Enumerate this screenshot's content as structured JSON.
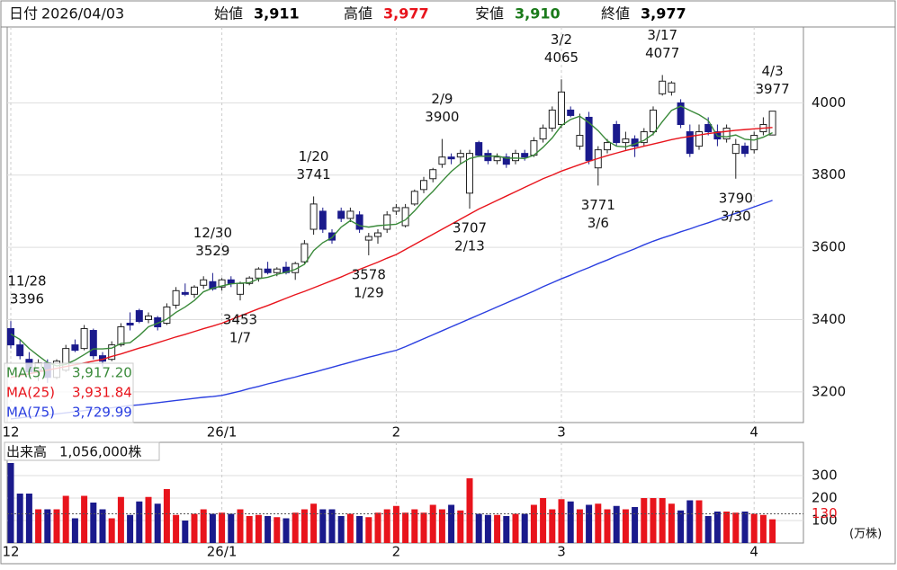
{
  "header": {
    "date_label": "日付",
    "date": "2026/04/03",
    "fields": [
      {
        "label": "始値",
        "value": "3,911",
        "color": "#000000"
      },
      {
        "label": "高値",
        "value": "3,977",
        "color": "#e8141c"
      },
      {
        "label": "安値",
        "value": "3,910",
        "color": "#1a7a1a"
      },
      {
        "label": "終値",
        "value": "3,977",
        "color": "#000000"
      }
    ]
  },
  "chart_data": [
    {
      "type": "candlestick",
      "categories": [
        "12",
        null,
        null,
        null,
        null,
        null,
        null,
        null,
        null,
        null,
        null,
        null,
        null,
        null,
        null,
        null,
        null,
        null,
        null,
        null,
        null,
        null,
        null,
        "26/1",
        null,
        null,
        null,
        null,
        null,
        null,
        null,
        null,
        null,
        null,
        null,
        null,
        null,
        null,
        null,
        null,
        null,
        null,
        "2",
        null,
        null,
        null,
        null,
        null,
        null,
        null,
        null,
        null,
        null,
        null,
        null,
        null,
        null,
        null,
        null,
        null,
        "3",
        null,
        null,
        null,
        null,
        null,
        null,
        null,
        null,
        null,
        null,
        null,
        null,
        null,
        null,
        null,
        null,
        null,
        null,
        null,
        null,
        "4",
        null,
        null
      ],
      "open": [
        3375,
        3330,
        3290,
        3260,
        3280,
        3240,
        3260,
        3330,
        3320,
        3370,
        3300,
        3290,
        3330,
        3390,
        3425,
        3400,
        3405,
        3390,
        3440,
        3475,
        3470,
        3495,
        3505,
        3490,
        3510,
        3470,
        3500,
        3515,
        3540,
        3530,
        3545,
        3530,
        3560,
        3650,
        3700,
        3640,
        3700,
        3680,
        3690,
        3620,
        3630,
        3650,
        3700,
        3660,
        3720,
        3760,
        3790,
        3830,
        3850,
        3850,
        3750,
        3890,
        3860,
        3840,
        3850,
        3840,
        3860,
        3855,
        3900,
        3930,
        3940,
        3980,
        3880,
        3960,
        3820,
        3870,
        3940,
        3890,
        3900,
        3890,
        3920,
        4025,
        4030,
        4000,
        3920,
        3880,
        3940,
        3920,
        3900,
        3860,
        3880,
        3870,
        3920,
        3911
      ],
      "high": [
        3396,
        3345,
        3310,
        3290,
        3290,
        3290,
        3330,
        3345,
        3385,
        3375,
        3310,
        3340,
        3390,
        3420,
        3430,
        3420,
        3410,
        3445,
        3490,
        3500,
        3495,
        3520,
        3529,
        3515,
        3520,
        3505,
        3520,
        3545,
        3560,
        3545,
        3560,
        3560,
        3620,
        3741,
        3710,
        3650,
        3710,
        3710,
        3700,
        3640,
        3650,
        3700,
        3720,
        3720,
        3760,
        3795,
        3820,
        3900,
        3860,
        3870,
        3870,
        3895,
        3870,
        3860,
        3860,
        3870,
        3870,
        3905,
        3940,
        3990,
        4065,
        3990,
        3970,
        3975,
        3880,
        3900,
        3950,
        3920,
        3910,
        3930,
        3990,
        4077,
        4060,
        4010,
        3940,
        3940,
        3960,
        3940,
        3940,
        3900,
        3890,
        3920,
        3960,
        3977
      ],
      "low": [
        3320,
        3290,
        3240,
        3230,
        3225,
        3235,
        3255,
        3310,
        3315,
        3290,
        3270,
        3285,
        3325,
        3370,
        3390,
        3390,
        3370,
        3385,
        3430,
        3465,
        3460,
        3485,
        3480,
        3480,
        3490,
        3453,
        3495,
        3505,
        3525,
        3520,
        3525,
        3510,
        3555,
        3635,
        3640,
        3610,
        3670,
        3670,
        3640,
        3578,
        3610,
        3640,
        3690,
        3655,
        3715,
        3750,
        3780,
        3820,
        3830,
        3830,
        3707,
        3850,
        3830,
        3830,
        3820,
        3830,
        3840,
        3850,
        3890,
        3920,
        3930,
        3960,
        3870,
        3830,
        3771,
        3860,
        3880,
        3870,
        3850,
        3880,
        3910,
        4020,
        4020,
        3930,
        3850,
        3870,
        3910,
        3880,
        3890,
        3790,
        3850,
        3860,
        3910,
        3910
      ],
      "close": [
        3330,
        3300,
        3255,
        3280,
        3240,
        3285,
        3320,
        3315,
        3375,
        3300,
        3285,
        3330,
        3380,
        3385,
        3395,
        3410,
        3380,
        3435,
        3480,
        3470,
        3490,
        3510,
        3485,
        3510,
        3500,
        3500,
        3515,
        3540,
        3530,
        3540,
        3530,
        3555,
        3610,
        3720,
        3650,
        3620,
        3680,
        3700,
        3650,
        3630,
        3640,
        3690,
        3710,
        3710,
        3755,
        3785,
        3815,
        3850,
        3845,
        3860,
        3860,
        3855,
        3840,
        3850,
        3830,
        3860,
        3850,
        3895,
        3930,
        3980,
        4030,
        3965,
        3910,
        3840,
        3870,
        3890,
        3890,
        3900,
        3880,
        3920,
        3980,
        4060,
        4055,
        3940,
        3860,
        3920,
        3920,
        3900,
        3930,
        3885,
        3860,
        3910,
        3940,
        3977
      ],
      "up_color": "#ffffff",
      "down_color": "#1a1a8c",
      "series": [
        {
          "name": "MA(5)",
          "color": "#3a8a3a",
          "legend_value": {
            "value": 3917.2,
            "label": "3,917.20"
          },
          "values": [
            3360,
            3345,
            3320,
            3300,
            3281,
            3272,
            3276,
            3288,
            3303,
            3319,
            3319,
            3321,
            3334,
            3336,
            3356,
            3380,
            3390,
            3401,
            3420,
            3435,
            3453,
            3477,
            3487,
            3493,
            3499,
            3501,
            3502,
            3513,
            3517,
            3525,
            3531,
            3539,
            3553,
            3591,
            3613,
            3627,
            3656,
            3674,
            3660,
            3656,
            3660,
            3662,
            3664,
            3676,
            3701,
            3730,
            3755,
            3783,
            3810,
            3831,
            3846,
            3852,
            3852,
            3853,
            3847,
            3847,
            3846,
            3855,
            3877,
            3903,
            3937,
            3954,
            3963,
            3945,
            3923,
            3895,
            3880,
            3878,
            3886,
            3896,
            3914,
            3948,
            3979,
            3991,
            3979,
            3967,
            3951,
            3908,
            3906,
            3911,
            3899,
            3897,
            3905,
            3917.2
          ]
        },
        {
          "name": "MA(25)",
          "color": "#e8141c",
          "legend_value": {
            "value": 3931.84,
            "label": "3,931.84"
          },
          "values": [
            3240,
            3245,
            3250,
            3255,
            3260,
            3265,
            3270,
            3275,
            3280,
            3285,
            3290,
            3298,
            3305,
            3313,
            3321,
            3328,
            3336,
            3344,
            3352,
            3359,
            3367,
            3375,
            3382,
            3390,
            3400,
            3410,
            3420,
            3430,
            3439,
            3449,
            3459,
            3469,
            3478,
            3488,
            3498,
            3508,
            3518,
            3529,
            3539,
            3549,
            3559,
            3570,
            3580,
            3594,
            3608,
            3622,
            3636,
            3650,
            3664,
            3678,
            3692,
            3706,
            3718,
            3730,
            3742,
            3754,
            3766,
            3778,
            3790,
            3800,
            3811,
            3820,
            3829,
            3838,
            3846,
            3854,
            3861,
            3868,
            3874,
            3880,
            3886,
            3892,
            3898,
            3903,
            3907,
            3911,
            3915,
            3918,
            3921,
            3924,
            3926,
            3928,
            3930,
            3931.84
          ]
        },
        {
          "name": "MA(75)",
          "color": "#2b3fe0",
          "legend_value": {
            "value": 3729.99,
            "label": "3,729.99"
          },
          "values": [
            3125,
            3128,
            3131,
            3133,
            3136,
            3139,
            3142,
            3145,
            3148,
            3151,
            3153,
            3156,
            3159,
            3162,
            3164,
            3167,
            3170,
            3173,
            3176,
            3179,
            3182,
            3185,
            3187,
            3190,
            3196,
            3202,
            3209,
            3215,
            3222,
            3228,
            3235,
            3241,
            3248,
            3254,
            3261,
            3268,
            3275,
            3282,
            3289,
            3296,
            3302,
            3309,
            3315,
            3325,
            3336,
            3347,
            3358,
            3369,
            3380,
            3391,
            3402,
            3413,
            3424,
            3435,
            3446,
            3457,
            3468,
            3479,
            3491,
            3502,
            3513,
            3523,
            3534,
            3544,
            3555,
            3565,
            3576,
            3586,
            3596,
            3607,
            3617,
            3626,
            3634,
            3643,
            3651,
            3660,
            3668,
            3677,
            3686,
            3694,
            3703,
            3712,
            3721,
            3729.99
          ]
        }
      ],
      "annotations": [
        {
          "date": "11/28",
          "value": 3396
        },
        {
          "date": "12/30",
          "value": 3529
        },
        {
          "date": "1/7",
          "value": 3453
        },
        {
          "date": "1/20",
          "value": 3741
        },
        {
          "date": "1/29",
          "value": 3578
        },
        {
          "date": "2/9",
          "value": 3900
        },
        {
          "date": "2/13",
          "value": 3707
        },
        {
          "date": "3/2",
          "value": 4065
        },
        {
          "date": "3/6",
          "value": 3771
        },
        {
          "date": "3/17",
          "value": 4077
        },
        {
          "date": "3/30",
          "value": 3790
        },
        {
          "date": "4/3",
          "value": 3977
        }
      ],
      "ylim": [
        3115,
        4210
      ],
      "yticks": [
        3200,
        3400,
        3600,
        3800,
        4000
      ],
      "grid": true
    },
    {
      "type": "bar",
      "title": "出来高",
      "latest": {
        "value": 105.6,
        "label": "1,056,000株"
      },
      "unit": "(万株)",
      "categories": [
        "12",
        null,
        null,
        null,
        null,
        null,
        null,
        null,
        null,
        null,
        null,
        null,
        null,
        null,
        null,
        null,
        null,
        null,
        null,
        null,
        null,
        null,
        null,
        "26/1",
        null,
        null,
        null,
        null,
        null,
        null,
        null,
        null,
        null,
        null,
        null,
        null,
        null,
        null,
        null,
        null,
        null,
        null,
        "2",
        null,
        null,
        null,
        null,
        null,
        null,
        null,
        null,
        null,
        null,
        null,
        null,
        null,
        null,
        null,
        null,
        null,
        "3",
        null,
        null,
        null,
        null,
        null,
        null,
        null,
        null,
        null,
        null,
        null,
        null,
        null,
        null,
        null,
        null,
        null,
        null,
        null,
        null,
        "4",
        null,
        null
      ],
      "values": [
        356,
        220,
        220,
        150,
        150,
        150,
        210,
        110,
        210,
        180,
        150,
        110,
        205,
        125,
        185,
        205,
        175,
        240,
        125,
        100,
        130,
        150,
        130,
        135,
        130,
        150,
        120,
        125,
        120,
        115,
        110,
        135,
        150,
        175,
        150,
        150,
        120,
        130,
        120,
        115,
        135,
        150,
        165,
        135,
        150,
        135,
        170,
        150,
        170,
        145,
        288,
        130,
        125,
        125,
        120,
        130,
        130,
        170,
        200,
        150,
        195,
        185,
        150,
        170,
        175,
        150,
        165,
        150,
        160,
        200,
        200,
        200,
        175,
        145,
        190,
        190,
        120,
        140,
        140,
        135,
        140,
        130,
        125,
        105.6
      ],
      "up_color": "#e8141c",
      "down_color": "#1a1a8c",
      "ylim": [
        0,
        448
      ],
      "yticks": [
        100,
        200,
        300
      ],
      "ref_line": {
        "value": 130,
        "color": "#e8141c"
      },
      "grid": true
    }
  ]
}
